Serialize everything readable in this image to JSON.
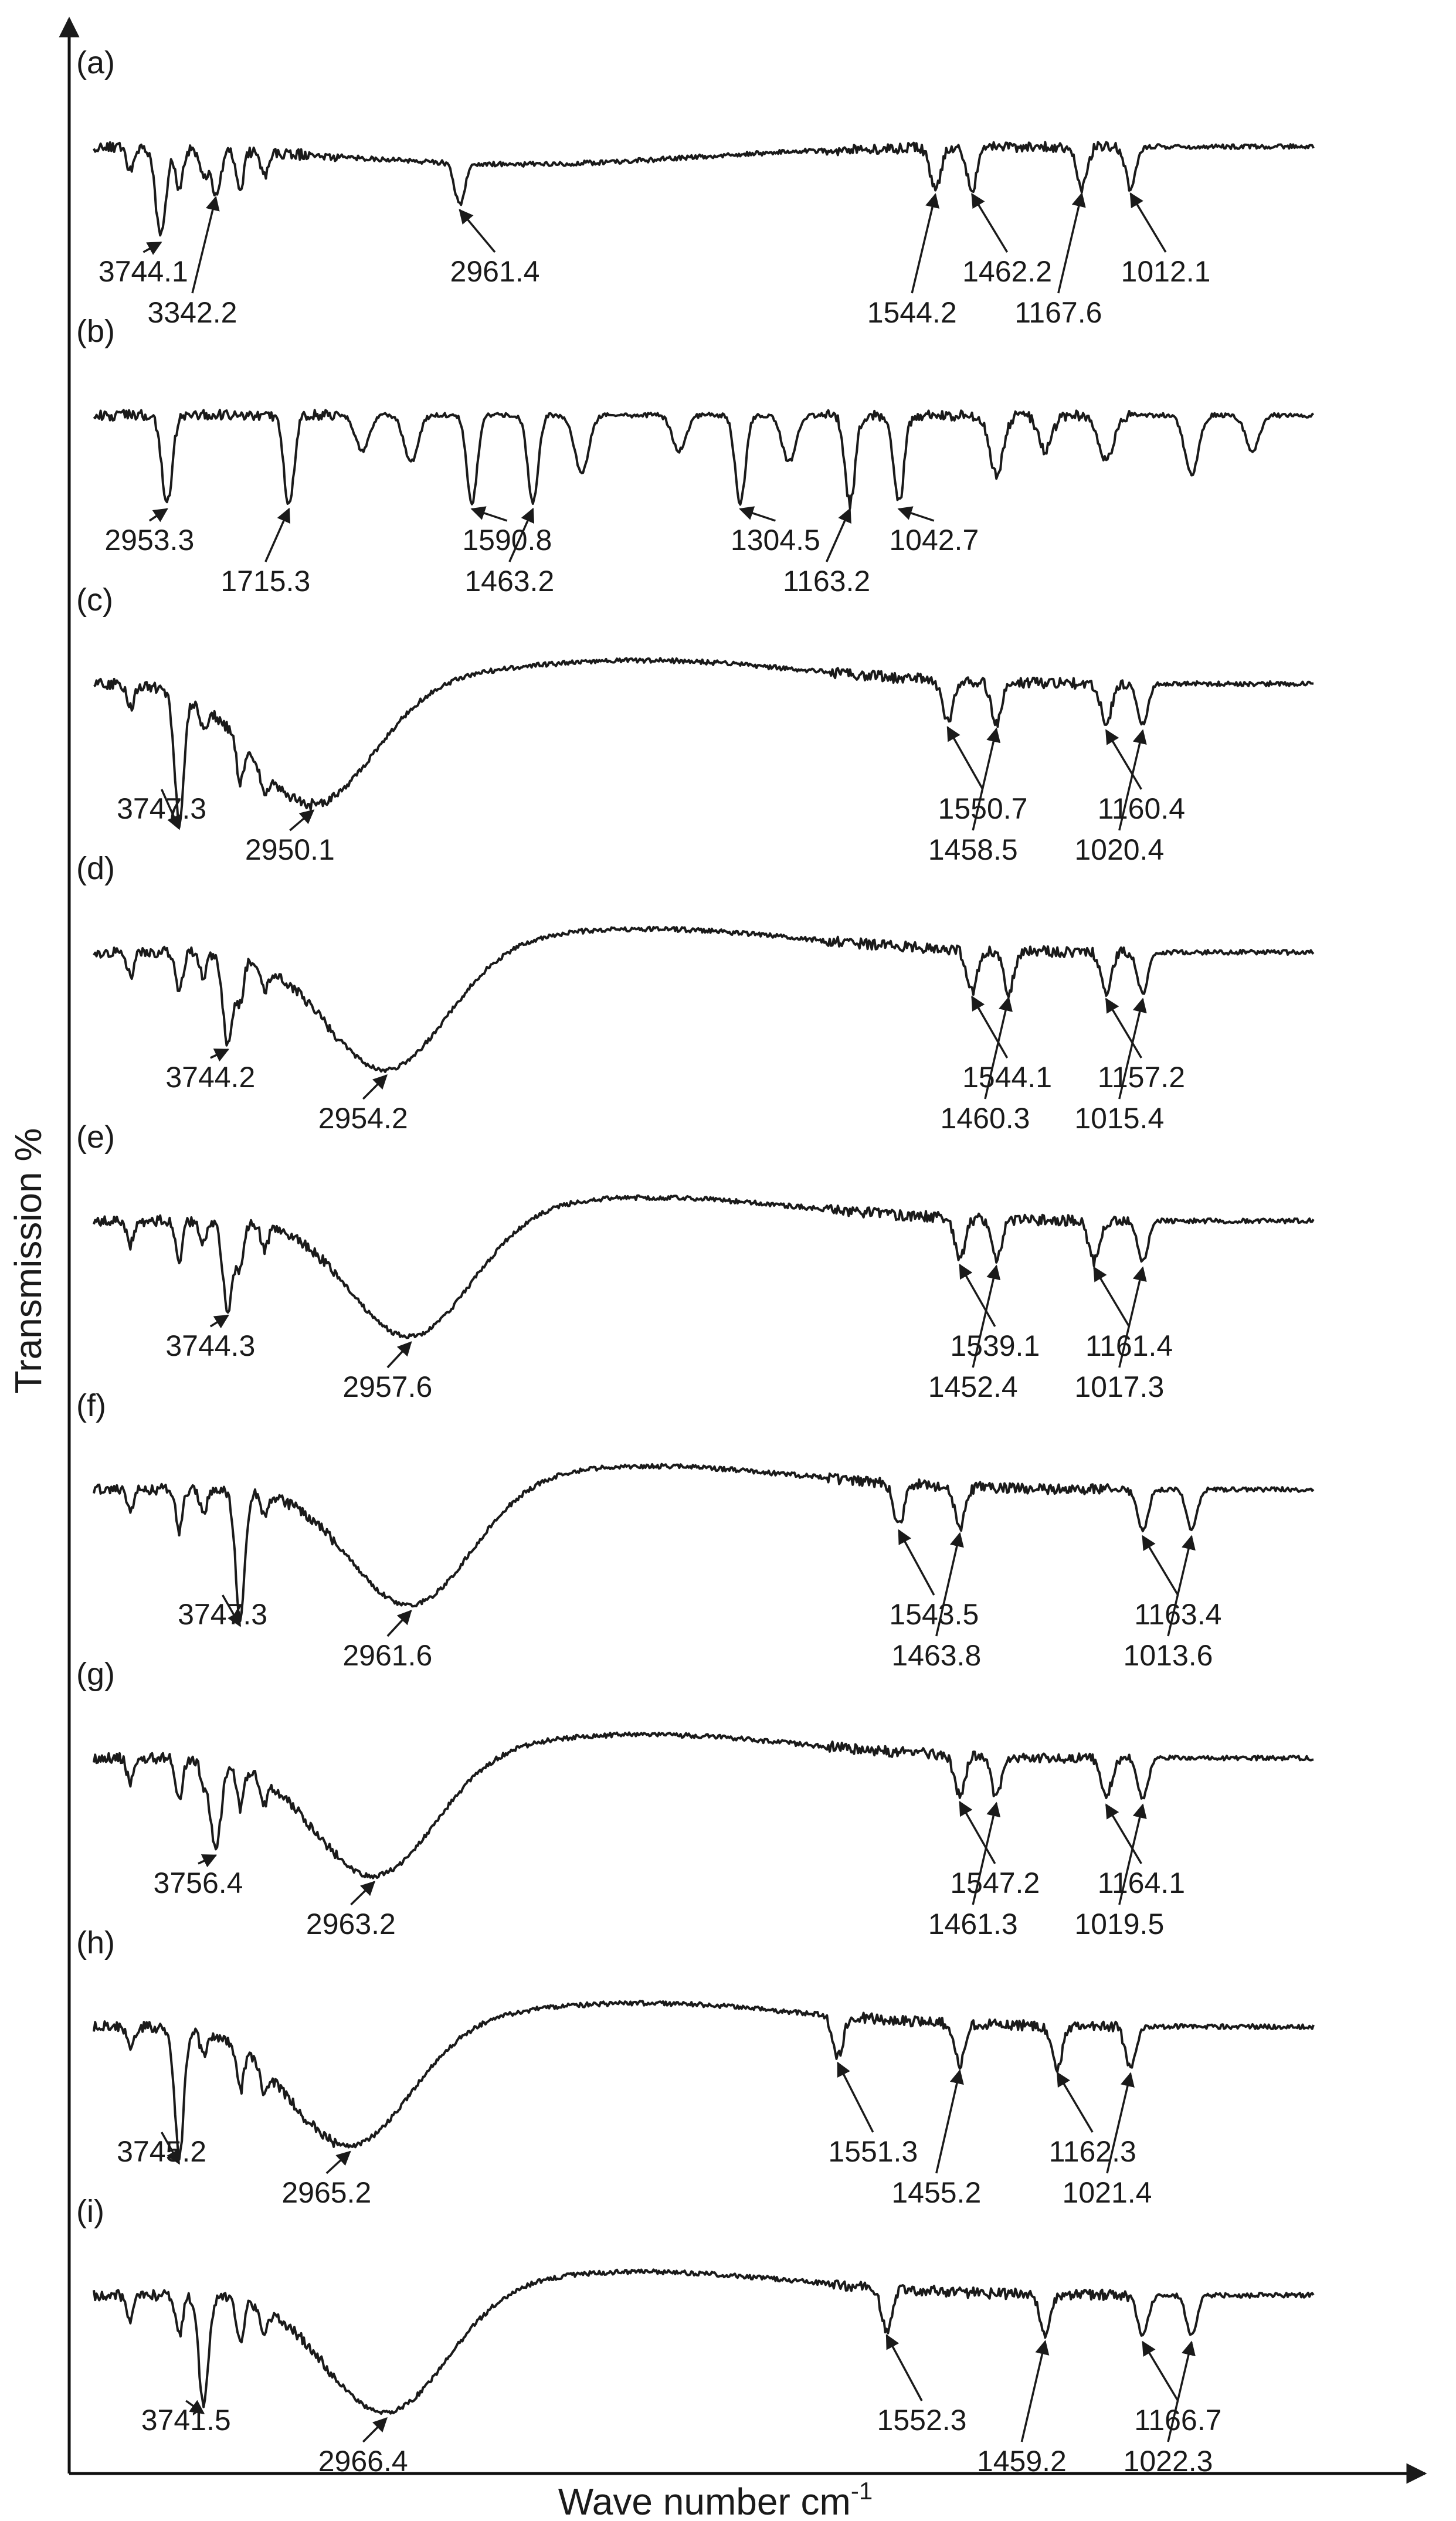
{
  "chart_data": {
    "type": "line",
    "xlabel": "Wave number  cm",
    "xlabel_superscript": "-1",
    "ylabel": "Transmission  %",
    "grid": false,
    "legend": "none",
    "series": [
      {
        "name": "(a)",
        "peaks": [
          {
            "label": "3744.1",
            "dip": 0.055
          },
          {
            "label": "3342.2",
            "dip": 0.1
          },
          {
            "label": "2961.4",
            "dip": 0.3
          },
          {
            "label": "1544.2",
            "dip": 0.69
          },
          {
            "label": "1462.2",
            "dip": 0.72
          },
          {
            "label": "1167.6",
            "dip": 0.81
          },
          {
            "label": "1012.1",
            "dip": 0.85
          }
        ]
      },
      {
        "name": "(b)",
        "peaks": [
          {
            "label": "2953.3",
            "dip": 0.06
          },
          {
            "label": "1715.3",
            "dip": 0.16
          },
          {
            "label": "1590.8",
            "dip": 0.31
          },
          {
            "label": "1463.2",
            "dip": 0.36
          },
          {
            "label": "1304.5",
            "dip": 0.53
          },
          {
            "label": "1163.2",
            "dip": 0.62
          },
          {
            "label": "1042.7",
            "dip": 0.66
          }
        ]
      },
      {
        "name": "(c)",
        "peaks": [
          {
            "label": "3747.3",
            "dip": 0.07
          },
          {
            "label": "2950.1",
            "dip": 0.18
          },
          {
            "label": "1550.7",
            "dip": 0.7
          },
          {
            "label": "1458.5",
            "dip": 0.74
          },
          {
            "label": "1160.4",
            "dip": 0.83
          },
          {
            "label": "1020.4",
            "dip": 0.86
          }
        ]
      },
      {
        "name": "(d)",
        "peaks": [
          {
            "label": "3744.2",
            "dip": 0.11
          },
          {
            "label": "2954.2",
            "dip": 0.24
          },
          {
            "label": "1544.1",
            "dip": 0.72
          },
          {
            "label": "1460.3",
            "dip": 0.75
          },
          {
            "label": "1157.2",
            "dip": 0.83
          },
          {
            "label": "1015.4",
            "dip": 0.86
          }
        ]
      },
      {
        "name": "(e)",
        "peaks": [
          {
            "label": "3744.3",
            "dip": 0.11
          },
          {
            "label": "2957.6",
            "dip": 0.26
          },
          {
            "label": "1539.1",
            "dip": 0.71
          },
          {
            "label": "1452.4",
            "dip": 0.74
          },
          {
            "label": "1161.4",
            "dip": 0.82
          },
          {
            "label": "1017.3",
            "dip": 0.86
          }
        ]
      },
      {
        "name": "(f)",
        "peaks": [
          {
            "label": "3747.3",
            "dip": 0.12
          },
          {
            "label": "2961.6",
            "dip": 0.26
          },
          {
            "label": "1543.5",
            "dip": 0.66
          },
          {
            "label": "1463.8",
            "dip": 0.71
          },
          {
            "label": "1163.4",
            "dip": 0.86
          },
          {
            "label": "1013.6",
            "dip": 0.9
          }
        ]
      },
      {
        "name": "(g)",
        "peaks": [
          {
            "label": "3756.4",
            "dip": 0.1
          },
          {
            "label": "2963.2",
            "dip": 0.23
          },
          {
            "label": "1547.2",
            "dip": 0.71
          },
          {
            "label": "1461.3",
            "dip": 0.74
          },
          {
            "label": "1164.1",
            "dip": 0.83
          },
          {
            "label": "1019.5",
            "dip": 0.86
          }
        ]
      },
      {
        "name": "(h)",
        "peaks": [
          {
            "label": "3745.2",
            "dip": 0.07
          },
          {
            "label": "2965.2",
            "dip": 0.21
          },
          {
            "label": "1551.3",
            "dip": 0.61
          },
          {
            "label": "1455.2",
            "dip": 0.71
          },
          {
            "label": "1162.3",
            "dip": 0.79
          },
          {
            "label": "1021.4",
            "dip": 0.85
          }
        ]
      },
      {
        "name": "(i)",
        "peaks": [
          {
            "label": "3741.5",
            "dip": 0.09
          },
          {
            "label": "2966.4",
            "dip": 0.24
          },
          {
            "label": "1552.3",
            "dip": 0.65
          },
          {
            "label": "1459.2",
            "dip": 0.78
          },
          {
            "label": "1166.7",
            "dip": 0.86
          },
          {
            "label": "1022.3",
            "dip": 0.9
          }
        ]
      }
    ]
  }
}
